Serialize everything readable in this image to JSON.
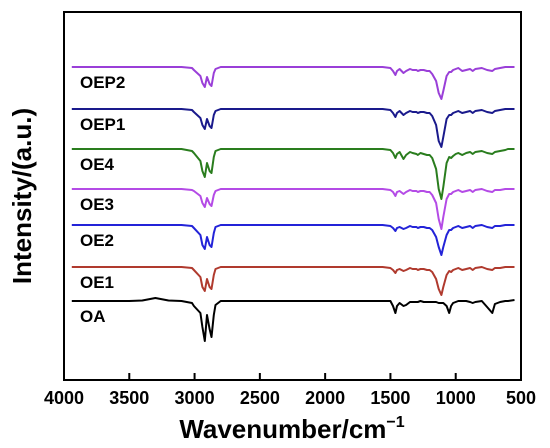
{
  "chart_data": {
    "type": "line",
    "title": "",
    "xlabel": "Wavenumber/cm",
    "xlabel_superscript": "−1",
    "ylabel": "Intensity/(a.u.)",
    "xlim": [
      4000,
      500
    ],
    "x_reversed": true,
    "x_ticks": [
      4000,
      3500,
      3000,
      2500,
      2000,
      1500,
      1000,
      500
    ],
    "y_ticks_shown": false,
    "grid": false,
    "legend": "none",
    "series_labels_inline": true,
    "x_sample_points": [
      4000,
      3600,
      3500,
      3400,
      3300,
      3200,
      3100,
      3020,
      3005,
      2955,
      2940,
      2922,
      2905,
      2885,
      2870,
      2853,
      2840,
      2800,
      2600,
      2400,
      2200,
      2000,
      1800,
      1700,
      1620,
      1560,
      1500,
      1480,
      1462,
      1450,
      1430,
      1400,
      1380,
      1350,
      1330,
      1300,
      1290,
      1270,
      1245,
      1220,
      1200,
      1180,
      1150,
      1130,
      1110,
      1095,
      1070,
      1050,
      1035,
      1020,
      1000,
      980,
      950,
      920,
      890,
      870,
      850,
      800,
      760,
      720,
      700,
      660,
      620,
      600,
      550
    ],
    "series": [
      {
        "name": "OA",
        "color": "#000000",
        "offset": 0,
        "values": [
          0,
          0,
          0,
          0.5,
          3,
          0.5,
          0,
          -2,
          -5,
          -12,
          -26,
          -40,
          -14,
          -28,
          -36,
          -14,
          -4,
          0,
          0,
          0,
          0,
          0,
          0,
          0,
          0,
          0,
          0,
          -5,
          -12,
          -5,
          -2,
          -5,
          -4,
          -1,
          -1,
          -1,
          -1,
          0,
          -1,
          -1,
          -1,
          -1,
          -1,
          -2,
          -2,
          -2,
          -5,
          -12,
          -5,
          -2,
          -1,
          0,
          0,
          0,
          -1,
          -2,
          -1,
          0,
          -6,
          -12,
          -3,
          -1,
          0,
          0,
          1
        ]
      },
      {
        "name": "OE1",
        "color": "#b03a2e",
        "offset": 34,
        "values": [
          0,
          0,
          0,
          0,
          0,
          0,
          0,
          -1,
          -3,
          -10,
          -20,
          -24,
          -12,
          -20,
          -22,
          -8,
          -2,
          0,
          0,
          0,
          0,
          0,
          0,
          0,
          0,
          0,
          -1,
          -3,
          -6,
          -3,
          -2,
          -4,
          -3,
          -1,
          -2,
          -2,
          -3,
          -2,
          -2,
          -3,
          -3,
          -5,
          -12,
          -22,
          -28,
          -20,
          -8,
          -4,
          -5,
          -3,
          -2,
          -1,
          -3,
          -2,
          -1,
          -3,
          -1,
          0,
          -2,
          -3,
          -1,
          -1,
          0,
          0,
          0
        ]
      },
      {
        "name": "OE2",
        "color": "#2323d8",
        "offset": 76,
        "values": [
          0,
          0,
          0,
          0,
          0,
          0,
          0,
          -1,
          -3,
          -10,
          -20,
          -24,
          -12,
          -20,
          -22,
          -8,
          -2,
          0,
          0,
          0,
          0,
          0,
          0,
          0,
          0,
          0,
          -1,
          -3,
          -6,
          -3,
          -2,
          -4,
          -3,
          -1,
          -2,
          -2,
          -3,
          -2,
          -2,
          -3,
          -3,
          -5,
          -12,
          -22,
          -30,
          -22,
          -10,
          -5,
          -5,
          -3,
          -2,
          -1,
          -3,
          -2,
          -1,
          -3,
          -1,
          0,
          -2,
          -3,
          -1,
          -1,
          0,
          0,
          0
        ]
      },
      {
        "name": "OE3",
        "color": "#b44be6",
        "offset": 112,
        "values": [
          0,
          0,
          0,
          0,
          0,
          0,
          0,
          -1,
          -2,
          -7,
          -14,
          -18,
          -9,
          -15,
          -17,
          -6,
          -2,
          0,
          0,
          0,
          0,
          0,
          0,
          0,
          0,
          0,
          -1,
          -3,
          -7,
          -3,
          -2,
          -5,
          -3,
          -1,
          -2,
          -2,
          -3,
          -2,
          -2,
          -3,
          -3,
          -6,
          -14,
          -30,
          -40,
          -28,
          -10,
          -5,
          -5,
          -3,
          -2,
          -1,
          -3,
          -2,
          -1,
          -3,
          -1,
          0,
          -2,
          -3,
          -1,
          -1,
          0,
          0,
          0
        ]
      },
      {
        "name": "OE4",
        "color": "#2a7d1e",
        "offset": 152,
        "values": [
          0,
          0,
          0,
          0,
          0,
          0,
          0,
          -2,
          -4,
          -12,
          -22,
          -28,
          -14,
          -22,
          -24,
          -8,
          -2,
          0,
          0,
          0,
          0,
          0,
          0,
          0,
          0,
          0,
          -1,
          -4,
          -9,
          -5,
          -3,
          -10,
          -6,
          -3,
          -4,
          -5,
          -6,
          -4,
          -5,
          -6,
          -6,
          -9,
          -20,
          -40,
          -50,
          -38,
          -14,
          -8,
          -9,
          -7,
          -5,
          -4,
          -6,
          -4,
          -3,
          -5,
          -3,
          -2,
          -4,
          -5,
          -3,
          -2,
          -1,
          0,
          0
        ]
      },
      {
        "name": "OEP1",
        "color": "#1a1a8c",
        "offset": 192,
        "values": [
          0,
          0,
          0,
          0,
          0,
          0,
          0,
          -1,
          -3,
          -9,
          -16,
          -20,
          -10,
          -17,
          -19,
          -6,
          -2,
          0,
          0,
          0,
          0,
          0,
          0,
          0,
          0,
          0,
          -1,
          -4,
          -8,
          -4,
          -2,
          -6,
          -4,
          -2,
          -3,
          -3,
          -4,
          -3,
          -3,
          -4,
          -4,
          -7,
          -16,
          -32,
          -38,
          -28,
          -10,
          -6,
          -6,
          -4,
          -3,
          -2,
          -4,
          -3,
          -2,
          -4,
          -2,
          -1,
          -3,
          -4,
          -2,
          -1,
          0,
          0,
          0
        ]
      },
      {
        "name": "OEP2",
        "color": "#9a3fd8",
        "offset": 234,
        "values": [
          0,
          0,
          0,
          0,
          0,
          0,
          0,
          -1,
          -3,
          -9,
          -16,
          -20,
          -10,
          -17,
          -19,
          -6,
          -2,
          0,
          0,
          0,
          0,
          0,
          0,
          0,
          0,
          0,
          -1,
          -4,
          -8,
          -4,
          -2,
          -6,
          -4,
          -2,
          -3,
          -3,
          -4,
          -3,
          -3,
          -4,
          -4,
          -7,
          -14,
          -26,
          -32,
          -24,
          -9,
          -5,
          -5,
          -3,
          -2,
          -1,
          -4,
          -3,
          -2,
          -4,
          -2,
          -1,
          -3,
          -4,
          -2,
          -1,
          0,
          0,
          0
        ]
      }
    ]
  }
}
